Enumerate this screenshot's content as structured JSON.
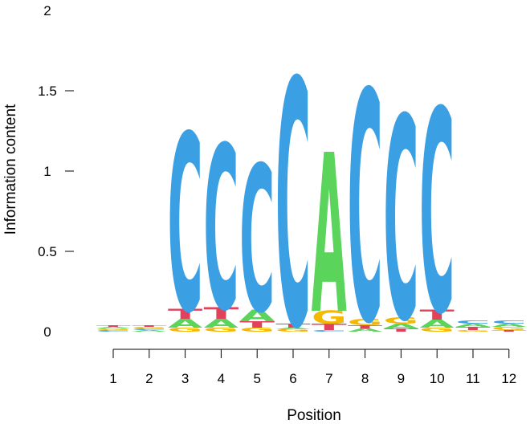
{
  "chart_data": {
    "type": "sequence-logo",
    "xlabel": "Position",
    "ylabel": "Information content",
    "ylim": [
      0,
      2
    ],
    "y_ticks": [
      "0",
      "0.5",
      "1",
      "1.5",
      "2"
    ],
    "positions": [
      "1",
      "2",
      "3",
      "4",
      "5",
      "6",
      "7",
      "8",
      "9",
      "10",
      "11",
      "12"
    ],
    "letter_colors": {
      "A": "#5ad45a",
      "C": "#3b9fe3",
      "G": "#f5b800",
      "T": "#e0425c"
    },
    "stacks": [
      [
        [
          "C",
          0.01
        ],
        [
          "G",
          0.01
        ],
        [
          "A",
          0.01
        ],
        [
          "T",
          0.01
        ]
      ],
      [
        [
          "A",
          0.01
        ],
        [
          "C",
          0.01
        ],
        [
          "G",
          0.01
        ],
        [
          "T",
          0.01
        ]
      ],
      [
        [
          "G",
          0.025
        ],
        [
          "A",
          0.055
        ],
        [
          "T",
          0.06
        ],
        [
          "C",
          1.1
        ]
      ],
      [
        [
          "G",
          0.025
        ],
        [
          "A",
          0.055
        ],
        [
          "T",
          0.07
        ],
        [
          "C",
          1.02
        ]
      ],
      [
        [
          "G",
          0.025
        ],
        [
          "T",
          0.04
        ],
        [
          "A",
          0.07
        ],
        [
          "C",
          0.91
        ]
      ],
      [
        [
          "G",
          0.015
        ],
        [
          "A",
          0.01
        ],
        [
          "T",
          0.025
        ],
        [
          "C",
          1.53
        ]
      ],
      [
        [
          "C",
          0.01
        ],
        [
          "T",
          0.04
        ],
        [
          "G",
          0.08
        ],
        [
          "A",
          0.99
        ]
      ],
      [
        [
          "A",
          0.02
        ],
        [
          "T",
          0.02
        ],
        [
          "G",
          0.04
        ],
        [
          "C",
          1.43
        ]
      ],
      [
        [
          "T",
          0.02
        ],
        [
          "A",
          0.03
        ],
        [
          "G",
          0.04
        ],
        [
          "C",
          1.26
        ]
      ],
      [
        [
          "G",
          0.025
        ],
        [
          "A",
          0.05
        ],
        [
          "T",
          0.06
        ],
        [
          "C",
          1.26
        ]
      ],
      [
        [
          "G",
          0.01
        ],
        [
          "T",
          0.02
        ],
        [
          "A",
          0.02
        ],
        [
          "C",
          0.02
        ]
      ],
      [
        [
          "T",
          0.01
        ],
        [
          "G",
          0.02
        ],
        [
          "A",
          0.02
        ],
        [
          "C",
          0.02
        ]
      ]
    ]
  }
}
